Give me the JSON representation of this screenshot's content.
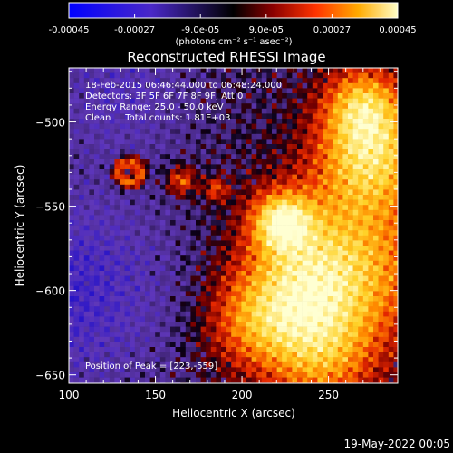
{
  "chart_data": {
    "type": "heatmap",
    "title": "Reconstructed RHESSI Image",
    "xlabel": "Heliocentric X (arcsec)",
    "ylabel": "Heliocentric Y (arcsec)",
    "xlim": [
      100,
      290
    ],
    "ylim": [
      -655,
      -468
    ],
    "x_ticks": [
      "100",
      "150",
      "200",
      "250"
    ],
    "y_ticks": [
      "-500",
      "-550",
      "-600",
      "-650"
    ],
    "colorbar": {
      "range": [
        -0.00045,
        0.00045
      ],
      "tick_labels": [
        "-0.00045",
        "-0.00027",
        "-9.0e-05",
        "9.0e-05",
        "0.00027",
        "0.00045"
      ],
      "unit_label": "(photons cm⁻² s⁻¹ asec⁻²)"
    },
    "annotations": {
      "time_range": "18-Feb-2015 06:46:44.000 to 06:48:24.000",
      "detectors": "Detectors: 3F 5F 6F 7F 8F 9F, Att 0",
      "energy_range": "Energy Range: 25.0 - 50.0 keV",
      "clean": "Clean     Total counts: 1.81E+03",
      "peak": "Position of Peak = [223,-559]"
    },
    "peak_position": [
      223,
      -559
    ],
    "footer_date": "19-May-2022 00:05"
  }
}
